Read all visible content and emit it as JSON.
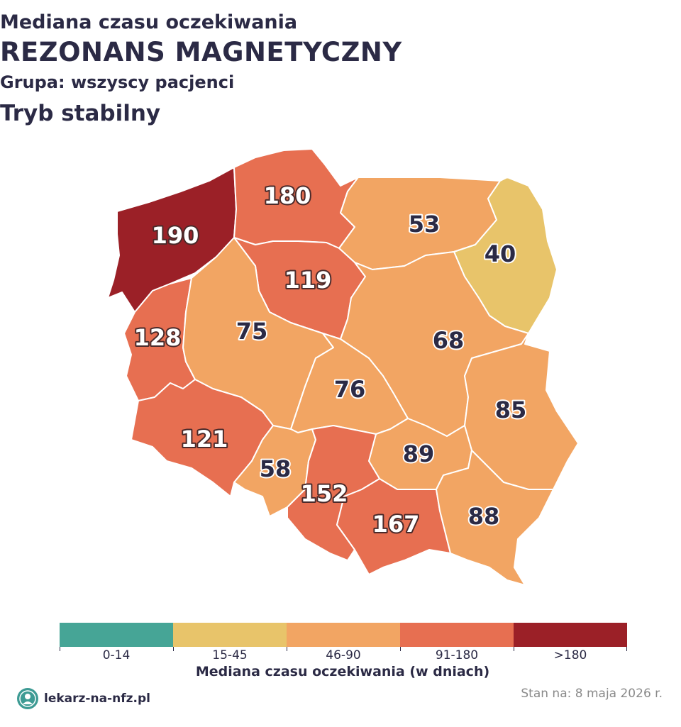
{
  "header": {
    "line1": "Mediana czasu oczekiwania",
    "line2": "REZONANS MAGNETYCZNY",
    "line3": "Grupa: wszyscy pacjenci",
    "line4": "Tryb stabilny"
  },
  "colors": {
    "bin_0_14": "#46a596",
    "bin_15_45": "#e8c46a",
    "bin_46_90": "#f2a563",
    "bin_91_180": "#e76f51",
    "bin_over_180": "#9b2027"
  },
  "regions": [
    {
      "id": "zachodniopomorskie",
      "value": "190",
      "bin": "bin_over_180"
    },
    {
      "id": "pomorskie",
      "value": "180",
      "bin": "bin_91_180"
    },
    {
      "id": "warminsko-mazurskie",
      "value": "53",
      "bin": "bin_46_90"
    },
    {
      "id": "podlaskie",
      "value": "40",
      "bin": "bin_15_45"
    },
    {
      "id": "kujawsko-pomorskie",
      "value": "119",
      "bin": "bin_91_180"
    },
    {
      "id": "lubuskie",
      "value": "128",
      "bin": "bin_91_180"
    },
    {
      "id": "wielkopolskie",
      "value": "75",
      "bin": "bin_46_90"
    },
    {
      "id": "mazowieckie",
      "value": "68",
      "bin": "bin_46_90"
    },
    {
      "id": "lodzkie",
      "value": "76",
      "bin": "bin_46_90"
    },
    {
      "id": "lubelskie",
      "value": "85",
      "bin": "bin_46_90"
    },
    {
      "id": "dolnoslaskie",
      "value": "121",
      "bin": "bin_91_180"
    },
    {
      "id": "opolskie",
      "value": "58",
      "bin": "bin_46_90"
    },
    {
      "id": "swietokrzyskie",
      "value": "89",
      "bin": "bin_46_90"
    },
    {
      "id": "slaskie",
      "value": "152",
      "bin": "bin_91_180"
    },
    {
      "id": "malopolskie",
      "value": "167",
      "bin": "bin_91_180"
    },
    {
      "id": "podkarpackie",
      "value": "88",
      "bin": "bin_46_90"
    }
  ],
  "legend": {
    "items": [
      {
        "label": "0-14",
        "bin": "bin_0_14"
      },
      {
        "label": "15-45",
        "bin": "bin_15_45"
      },
      {
        "label": "46-90",
        "bin": "bin_46_90"
      },
      {
        "label": "91-180",
        "bin": "bin_91_180"
      },
      {
        "label": ">180",
        "bin": "bin_over_180"
      }
    ],
    "title": "Mediana czasu oczekiwania (w dniach)"
  },
  "footer": {
    "brand": "lekarz-na-nfz.pl",
    "logo_icon": "doctor-avatar-icon",
    "date": "Stan na: 8 maja 2026 r."
  }
}
